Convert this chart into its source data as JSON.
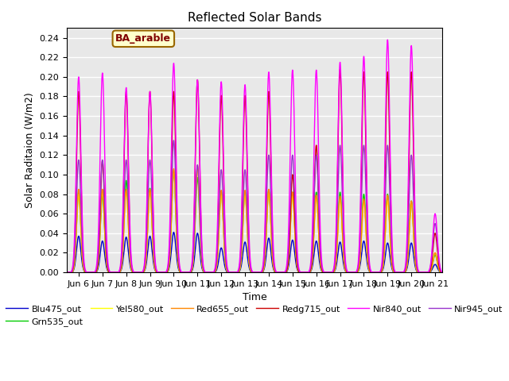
{
  "title": "Reflected Solar Bands",
  "xlabel": "Time",
  "ylabel": "Solar Raditaion (W/m2)",
  "annotation": "BA_arable",
  "ylim": [
    0.0,
    0.25
  ],
  "xlim_days": [
    5.5,
    21.3
  ],
  "x_ticks": [
    6,
    7,
    8,
    9,
    10,
    11,
    12,
    13,
    14,
    15,
    16,
    17,
    18,
    19,
    20,
    21
  ],
  "x_tick_labels": [
    "Jun 6",
    "Jun 7",
    "Jun 8",
    "Jun 9",
    "Jun 10",
    "Jun 11",
    "Jun 12",
    "Jun 13",
    "Jun 14",
    "Jun 15",
    "Jun 16",
    "Jun 17",
    "Jun 18",
    "Jun 19",
    "Jun 20",
    "Jun 21"
  ],
  "yticks": [
    0.0,
    0.02,
    0.04,
    0.06,
    0.08,
    0.1,
    0.12,
    0.14,
    0.16,
    0.18,
    0.2,
    0.22,
    0.24
  ],
  "colors": {
    "Blu475_out": "#0000cc",
    "Grn535_out": "#00cc00",
    "Yel580_out": "#ffff00",
    "Red655_out": "#ff8800",
    "Redg715_out": "#cc0000",
    "Nir840_out": "#ff00ff",
    "Nir945_out": "#9933cc"
  },
  "legend_labels": [
    "Blu475_out",
    "Grn535_out",
    "Yel580_out",
    "Red655_out",
    "Redg715_out",
    "Nir840_out",
    "Nir945_out"
  ],
  "background_color": "#e8e8e8",
  "grid_color": "#ffffff",
  "annotation_bg": "#ffffcc",
  "annotation_border": "#996600",
  "annotation_text_color": "#800000",
  "day_peaks_nir840": [
    0.2,
    0.204,
    0.189,
    0.185,
    0.214,
    0.197,
    0.195,
    0.192,
    0.205,
    0.207,
    0.207,
    0.215,
    0.221,
    0.238,
    0.232,
    0.06
  ],
  "day_peaks_nir945": [
    0.115,
    0.115,
    0.115,
    0.115,
    0.135,
    0.11,
    0.105,
    0.105,
    0.12,
    0.12,
    0.12,
    0.13,
    0.13,
    0.13,
    0.12,
    0.05
  ],
  "day_peaks_redg715": [
    0.185,
    0.114,
    0.185,
    0.185,
    0.185,
    0.197,
    0.181,
    0.181,
    0.185,
    0.1,
    0.13,
    0.208,
    0.205,
    0.205,
    0.205,
    0.04
  ],
  "day_peaks_red655": [
    0.085,
    0.085,
    0.085,
    0.085,
    0.106,
    0.109,
    0.084,
    0.084,
    0.085,
    0.082,
    0.079,
    0.078,
    0.075,
    0.079,
    0.073,
    0.02
  ],
  "day_peaks_yel580": [
    0.08,
    0.082,
    0.083,
    0.082,
    0.105,
    0.106,
    0.08,
    0.08,
    0.083,
    0.078,
    0.077,
    0.075,
    0.073,
    0.073,
    0.072,
    0.02
  ],
  "day_peaks_grn535": [
    0.082,
    0.078,
    0.094,
    0.086,
    0.103,
    0.097,
    0.083,
    0.083,
    0.084,
    0.082,
    0.082,
    0.082,
    0.08,
    0.08,
    0.073,
    0.018
  ],
  "day_peaks_blu475": [
    0.037,
    0.032,
    0.036,
    0.037,
    0.041,
    0.04,
    0.025,
    0.031,
    0.035,
    0.033,
    0.032,
    0.031,
    0.032,
    0.03,
    0.03,
    0.008
  ]
}
